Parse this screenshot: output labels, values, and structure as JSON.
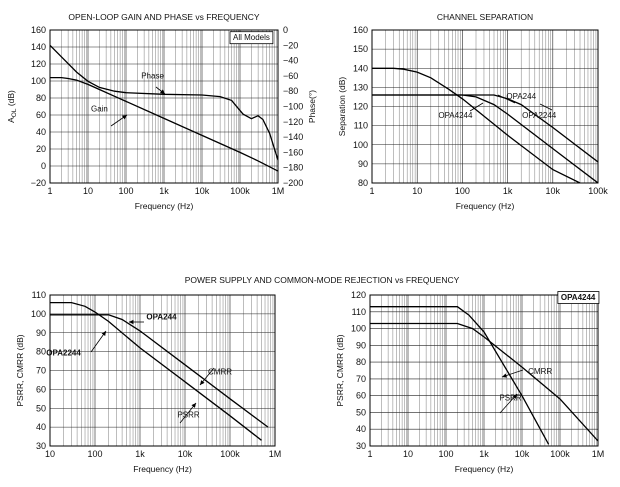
{
  "section_title": "POWER SUPPLY AND COMMON-MODE REJECTION vs FREQUENCY",
  "chart_data": [
    {
      "id": "c1",
      "type": "line",
      "title": "OPEN-LOOP GAIN AND PHASE vs FREQUENCY",
      "xlabel": "Frequency (Hz)",
      "ylabel": "A_OL (dB)",
      "ylabel_main": "A",
      "ylabel_sub": "OL",
      "ylabel_rest": " (dB)",
      "y2label": "Phase(°)",
      "xscale": "log",
      "xlim": [
        1,
        1000000
      ],
      "ylim": [
        -20,
        160
      ],
      "y2lim": [
        -200,
        0
      ],
      "xticks": [
        {
          "v": 1,
          "label": "1"
        },
        {
          "v": 10,
          "label": "10"
        },
        {
          "v": 100,
          "label": "100"
        },
        {
          "v": 1000,
          "label": "1k"
        },
        {
          "v": 10000,
          "label": "10k"
        },
        {
          "v": 100000,
          "label": "100k"
        },
        {
          "v": 1000000,
          "label": "1M"
        }
      ],
      "yticks": [
        {
          "v": -20,
          "label": "−20"
        },
        {
          "v": 0,
          "label": "0"
        },
        {
          "v": 20,
          "label": "20"
        },
        {
          "v": 40,
          "label": "40"
        },
        {
          "v": 60,
          "label": "60"
        },
        {
          "v": 80,
          "label": "80"
        },
        {
          "v": 100,
          "label": "100"
        },
        {
          "v": 120,
          "label": "120"
        },
        {
          "v": 140,
          "label": "140"
        },
        {
          "v": 160,
          "label": "160"
        }
      ],
      "y2ticks": [
        {
          "v": 0,
          "label": "0"
        },
        {
          "v": -20,
          "label": "−20"
        },
        {
          "v": -40,
          "label": "−40"
        },
        {
          "v": -60,
          "label": "−60"
        },
        {
          "v": -80,
          "label": "−80"
        },
        {
          "v": -100,
          "label": "−100"
        },
        {
          "v": -120,
          "label": "−120"
        },
        {
          "v": -140,
          "label": "−140"
        },
        {
          "v": -160,
          "label": "−160"
        },
        {
          "v": -180,
          "label": "−180"
        },
        {
          "v": -200,
          "label": "−200"
        }
      ],
      "series": [
        {
          "name": "Gain",
          "axis": "left",
          "x": [
            1,
            2,
            3,
            5,
            10,
            20,
            50,
            100,
            1000,
            10000,
            100000,
            300000,
            1000000
          ],
          "y": [
            104,
            104,
            103,
            101,
            96,
            90,
            82,
            76,
            56,
            36,
            16,
            6,
            -6
          ]
        },
        {
          "name": "Phase",
          "axis": "right",
          "x": [
            1,
            2,
            5,
            10,
            20,
            50,
            100,
            1000,
            10000,
            30000,
            60000,
            120000,
            200000,
            300000,
            400000,
            600000,
            1000000
          ],
          "y": [
            -20,
            -35,
            -55,
            -67,
            -75,
            -80,
            -82,
            -84,
            -85,
            -87,
            -92,
            -110,
            -116,
            -112,
            -117,
            -135,
            -170
          ]
        }
      ],
      "annotations": [
        {
          "text": "All Models",
          "x": 200000,
          "y": 148,
          "boxed": true
        },
        {
          "text": "Phase",
          "x": 500,
          "y": 103
        },
        {
          "text": "Gain",
          "x": 20,
          "y": 64
        }
      ]
    },
    {
      "id": "c2",
      "type": "line",
      "title": "CHANNEL SEPARATION",
      "xlabel": "Frequency (Hz)",
      "ylabel": "Separation (dB)",
      "xscale": "log",
      "xlim": [
        1,
        100000
      ],
      "ylim": [
        80,
        160
      ],
      "xticks": [
        {
          "v": 1,
          "label": "1"
        },
        {
          "v": 10,
          "label": "10"
        },
        {
          "v": 100,
          "label": "100"
        },
        {
          "v": 1000,
          "label": "1k"
        },
        {
          "v": 10000,
          "label": "10k"
        },
        {
          "v": 100000,
          "label": "100k"
        }
      ],
      "yticks": [
        {
          "v": 80,
          "label": "80"
        },
        {
          "v": 90,
          "label": "90"
        },
        {
          "v": 100,
          "label": "100"
        },
        {
          "v": 110,
          "label": "110"
        },
        {
          "v": 120,
          "label": "120"
        },
        {
          "v": 130,
          "label": "130"
        },
        {
          "v": 140,
          "label": "140"
        },
        {
          "v": 150,
          "label": "150"
        },
        {
          "v": 160,
          "label": "160"
        }
      ],
      "series": [
        {
          "name": "OPA4244",
          "x": [
            1,
            3,
            5,
            10,
            20,
            50,
            100,
            1000,
            10000,
            40000
          ],
          "y": [
            140,
            140,
            139.5,
            138,
            135,
            129,
            124,
            105,
            87,
            80
          ]
        },
        {
          "name": "OPA244",
          "x": [
            1,
            100,
            200,
            500,
            1000,
            10000,
            100000
          ],
          "y": [
            126,
            126,
            125,
            121,
            116,
            98,
            80
          ]
        },
        {
          "name": "OPA2244",
          "x": [
            1,
            500,
            1000,
            2000,
            10000,
            100000
          ],
          "y": [
            126,
            126,
            124,
            121,
            109,
            91
          ]
        }
      ],
      "annotations": [
        {
          "text": "OPA244",
          "x": 2000,
          "y": 124
        },
        {
          "text": "OPA4244",
          "x": 70,
          "y": 114
        },
        {
          "text": "OPA2244",
          "x": 5000,
          "y": 114
        }
      ]
    },
    {
      "id": "c3",
      "type": "line",
      "title": "",
      "xlabel": "Frequency (Hz)",
      "ylabel": "PSRR, CMRR (dB)",
      "xscale": "log",
      "xlim": [
        10,
        1000000
      ],
      "ylim": [
        30,
        110
      ],
      "xticks": [
        {
          "v": 10,
          "label": "10"
        },
        {
          "v": 100,
          "label": "100"
        },
        {
          "v": 1000,
          "label": "1k"
        },
        {
          "v": 10000,
          "label": "10k"
        },
        {
          "v": 100000,
          "label": "100k"
        },
        {
          "v": 1000000,
          "label": "1M"
        }
      ],
      "yticks": [
        {
          "v": 30,
          "label": "30"
        },
        {
          "v": 40,
          "label": "40"
        },
        {
          "v": 50,
          "label": "50"
        },
        {
          "v": 60,
          "label": "60"
        },
        {
          "v": 70,
          "label": "70"
        },
        {
          "v": 80,
          "label": "80"
        },
        {
          "v": 90,
          "label": "90"
        },
        {
          "v": 100,
          "label": "100"
        },
        {
          "v": 110,
          "label": "110"
        }
      ],
      "series": [
        {
          "name": "CMRR",
          "x": [
            10,
            30,
            60,
            100,
            200,
            1000,
            10000,
            100000,
            500000
          ],
          "y": [
            106,
            106,
            104,
            101,
            96,
            82,
            64,
            46,
            33
          ]
        },
        {
          "name": "PSRR",
          "x": [
            10,
            200,
            400,
            1000,
            10000,
            100000,
            700000
          ],
          "y": [
            99.5,
            99.5,
            97,
            91,
            73,
            55,
            40
          ]
        }
      ],
      "annotations": [
        {
          "text": "OPA244",
          "x": 3000,
          "y": 97,
          "bold": true
        },
        {
          "text": "OPA2244",
          "x": 20,
          "y": 78,
          "bold": true
        },
        {
          "text": "CMRR",
          "x": 60000,
          "y": 68
        },
        {
          "text": "PSRR",
          "x": 12000,
          "y": 45
        }
      ]
    },
    {
      "id": "c4",
      "type": "line",
      "title": "",
      "xlabel": "Frequency (Hz)",
      "ylabel": "PSRR, CMRR (dB)",
      "xscale": "log",
      "xlim": [
        1,
        1000000
      ],
      "ylim": [
        30,
        120
      ],
      "xticks": [
        {
          "v": 1,
          "label": "1"
        },
        {
          "v": 10,
          "label": "10"
        },
        {
          "v": 100,
          "label": "100"
        },
        {
          "v": 1000,
          "label": "1k"
        },
        {
          "v": 10000,
          "label": "10k"
        },
        {
          "v": 100000,
          "label": "100k"
        },
        {
          "v": 1000000,
          "label": "1M"
        }
      ],
      "yticks": [
        {
          "v": 30,
          "label": "30"
        },
        {
          "v": 40,
          "label": "40"
        },
        {
          "v": 50,
          "label": "50"
        },
        {
          "v": 60,
          "label": "60"
        },
        {
          "v": 70,
          "label": "70"
        },
        {
          "v": 80,
          "label": "80"
        },
        {
          "v": 90,
          "label": "90"
        },
        {
          "v": 100,
          "label": "100"
        },
        {
          "v": 110,
          "label": "110"
        },
        {
          "v": 120,
          "label": "120"
        }
      ],
      "series": [
        {
          "name": "CMRR",
          "x": [
            1,
            200,
            500,
            1000,
            10000,
            100000,
            1000000
          ],
          "y": [
            103,
            103,
            100,
            95,
            77,
            58,
            33
          ]
        },
        {
          "name": "PSRR",
          "x": [
            1,
            200,
            400,
            1000,
            10000,
            50000
          ],
          "y": [
            113,
            113,
            108,
            98,
            60,
            31
          ]
        }
      ],
      "annotations": [
        {
          "text": "OPA4244",
          "x": 300000,
          "y": 117,
          "boxed": true,
          "bold": true
        },
        {
          "text": "CMRR",
          "x": 30000,
          "y": 73
        },
        {
          "text": "PSRR",
          "x": 5000,
          "y": 57
        }
      ]
    }
  ]
}
